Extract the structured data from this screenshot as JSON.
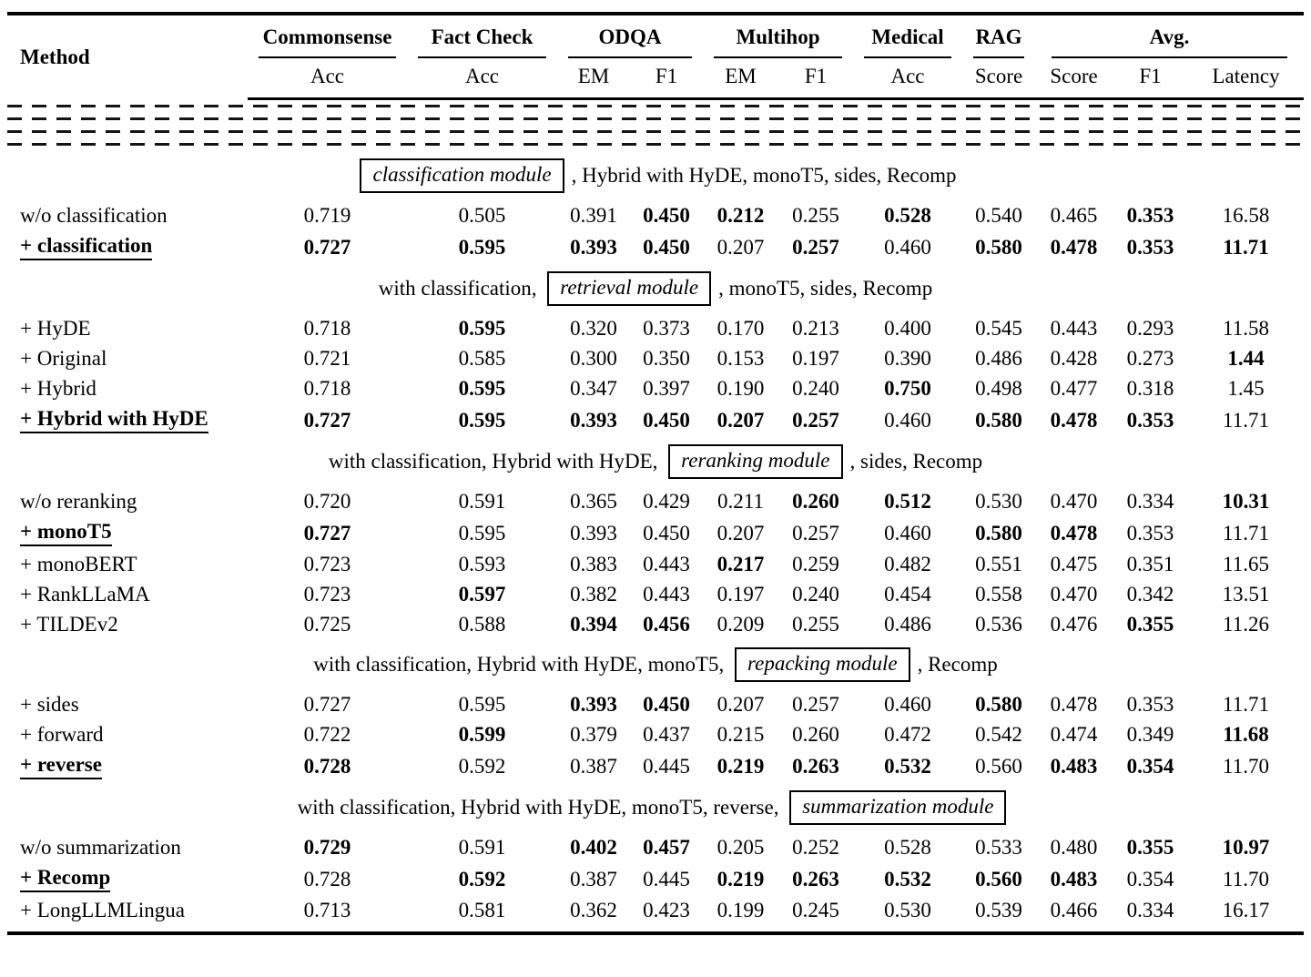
{
  "colors": {
    "text": "#000000",
    "background": "#ffffff",
    "rule": "#000000"
  },
  "table": {
    "header": {
      "method": "Method",
      "groups": [
        {
          "label": "Commonsense",
          "span": 1
        },
        {
          "label": "Fact Check",
          "span": 1
        },
        {
          "label": "ODQA",
          "span": 2
        },
        {
          "label": "Multihop",
          "span": 2
        },
        {
          "label": "Medical",
          "span": 1
        },
        {
          "label": "RAG",
          "span": 1
        },
        {
          "label": "Avg.",
          "span": 3
        }
      ],
      "subcolumns": [
        "Acc",
        "Acc",
        "EM",
        "F1",
        "EM",
        "F1",
        "Acc",
        "Score",
        "Score",
        "F1",
        "Latency"
      ]
    },
    "sections": [
      {
        "header": {
          "pre": "",
          "module": "classification module",
          "post": ", Hybrid with HyDE, monoT5, sides, Recomp"
        },
        "rows": [
          {
            "method": "w/o classification",
            "selected": false,
            "values": [
              "0.719",
              "0.505",
              "0.391",
              "0.450",
              "0.212",
              "0.255",
              "0.528",
              "0.540",
              "0.465",
              "0.353",
              "16.58"
            ],
            "bold": [
              3,
              4,
              6,
              9
            ]
          },
          {
            "method": "+ classification",
            "selected": true,
            "values": [
              "0.727",
              "0.595",
              "0.393",
              "0.450",
              "0.207",
              "0.257",
              "0.460",
              "0.580",
              "0.478",
              "0.353",
              "11.71"
            ],
            "bold": [
              0,
              1,
              2,
              3,
              5,
              7,
              8,
              9,
              10
            ]
          }
        ]
      },
      {
        "header": {
          "pre": "with classification, ",
          "module": "retrieval module",
          "post": ", monoT5, sides, Recomp"
        },
        "rows": [
          {
            "method": "+ HyDE",
            "selected": false,
            "values": [
              "0.718",
              "0.595",
              "0.320",
              "0.373",
              "0.170",
              "0.213",
              "0.400",
              "0.545",
              "0.443",
              "0.293",
              "11.58"
            ],
            "bold": [
              1
            ]
          },
          {
            "method": "+ Original",
            "selected": false,
            "values": [
              "0.721",
              "0.585",
              "0.300",
              "0.350",
              "0.153",
              "0.197",
              "0.390",
              "0.486",
              "0.428",
              "0.273",
              "1.44"
            ],
            "bold": [
              10
            ]
          },
          {
            "method": "+ Hybrid",
            "selected": false,
            "values": [
              "0.718",
              "0.595",
              "0.347",
              "0.397",
              "0.190",
              "0.240",
              "0.750",
              "0.498",
              "0.477",
              "0.318",
              "1.45"
            ],
            "bold": [
              1,
              6
            ]
          },
          {
            "method": "+ Hybrid with HyDE",
            "selected": true,
            "values": [
              "0.727",
              "0.595",
              "0.393",
              "0.450",
              "0.207",
              "0.257",
              "0.460",
              "0.580",
              "0.478",
              "0.353",
              "11.71"
            ],
            "bold": [
              0,
              1,
              2,
              3,
              4,
              5,
              7,
              8,
              9
            ]
          }
        ]
      },
      {
        "header": {
          "pre": "with classification, Hybrid with HyDE, ",
          "module": "reranking module",
          "post": ", sides, Recomp"
        },
        "rows": [
          {
            "method": "w/o reranking",
            "selected": false,
            "values": [
              "0.720",
              "0.591",
              "0.365",
              "0.429",
              "0.211",
              "0.260",
              "0.512",
              "0.530",
              "0.470",
              "0.334",
              "10.31"
            ],
            "bold": [
              5,
              6,
              10
            ]
          },
          {
            "method": "+ monoT5",
            "selected": true,
            "values": [
              "0.727",
              "0.595",
              "0.393",
              "0.450",
              "0.207",
              "0.257",
              "0.460",
              "0.580",
              "0.478",
              "0.353",
              "11.71"
            ],
            "bold": [
              0,
              7,
              8
            ]
          },
          {
            "method": "+ monoBERT",
            "selected": false,
            "values": [
              "0.723",
              "0.593",
              "0.383",
              "0.443",
              "0.217",
              "0.259",
              "0.482",
              "0.551",
              "0.475",
              "0.351",
              "11.65"
            ],
            "bold": [
              4
            ]
          },
          {
            "method": "+ RankLLaMA",
            "selected": false,
            "values": [
              "0.723",
              "0.597",
              "0.382",
              "0.443",
              "0.197",
              "0.240",
              "0.454",
              "0.558",
              "0.470",
              "0.342",
              "13.51"
            ],
            "bold": [
              1
            ]
          },
          {
            "method": "+ TILDEv2",
            "selected": false,
            "values": [
              "0.725",
              "0.588",
              "0.394",
              "0.456",
              "0.209",
              "0.255",
              "0.486",
              "0.536",
              "0.476",
              "0.355",
              "11.26"
            ],
            "bold": [
              2,
              3,
              9
            ]
          }
        ]
      },
      {
        "header": {
          "pre": "with classification, Hybrid with HyDE, monoT5, ",
          "module": "repacking module",
          "post": ", Recomp"
        },
        "rows": [
          {
            "method": "+ sides",
            "selected": false,
            "values": [
              "0.727",
              "0.595",
              "0.393",
              "0.450",
              "0.207",
              "0.257",
              "0.460",
              "0.580",
              "0.478",
              "0.353",
              "11.71"
            ],
            "bold": [
              2,
              3,
              7
            ]
          },
          {
            "method": "+ forward",
            "selected": false,
            "values": [
              "0.722",
              "0.599",
              "0.379",
              "0.437",
              "0.215",
              "0.260",
              "0.472",
              "0.542",
              "0.474",
              "0.349",
              "11.68"
            ],
            "bold": [
              1,
              10
            ]
          },
          {
            "method": "+ reverse",
            "selected": true,
            "values": [
              "0.728",
              "0.592",
              "0.387",
              "0.445",
              "0.219",
              "0.263",
              "0.532",
              "0.560",
              "0.483",
              "0.354",
              "11.70"
            ],
            "bold": [
              0,
              4,
              5,
              6,
              8,
              9
            ]
          }
        ]
      },
      {
        "header": {
          "pre": "with classification, Hybrid with HyDE, monoT5, reverse, ",
          "module": "summarization module",
          "post": ""
        },
        "rows": [
          {
            "method": "w/o summarization",
            "selected": false,
            "values": [
              "0.729",
              "0.591",
              "0.402",
              "0.457",
              "0.205",
              "0.252",
              "0.528",
              "0.533",
              "0.480",
              "0.355",
              "10.97"
            ],
            "bold": [
              0,
              2,
              3,
              9,
              10
            ]
          },
          {
            "method": "+ Recomp",
            "selected": true,
            "values": [
              "0.728",
              "0.592",
              "0.387",
              "0.445",
              "0.219",
              "0.263",
              "0.532",
              "0.560",
              "0.483",
              "0.354",
              "11.70"
            ],
            "bold": [
              1,
              4,
              5,
              6,
              7,
              8
            ]
          },
          {
            "method": "+ LongLLMLingua",
            "selected": false,
            "values": [
              "0.713",
              "0.581",
              "0.362",
              "0.423",
              "0.199",
              "0.245",
              "0.530",
              "0.539",
              "0.466",
              "0.334",
              "16.17"
            ],
            "bold": []
          }
        ]
      }
    ]
  }
}
